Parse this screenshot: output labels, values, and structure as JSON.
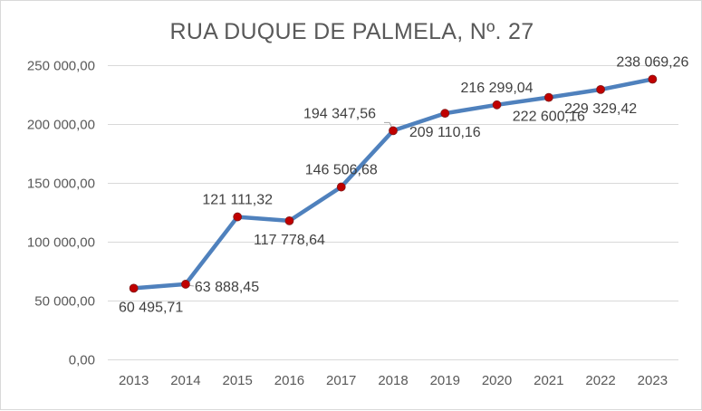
{
  "chart_data": {
    "type": "line",
    "title": "RUA DUQUE DE PALMELA, Nº. 27",
    "xlabel": "",
    "ylabel": "",
    "categories": [
      "2013",
      "2014",
      "2015",
      "2016",
      "2017",
      "2018",
      "2019",
      "2020",
      "2021",
      "2022",
      "2023"
    ],
    "values": [
      60495.71,
      63888.45,
      121111.32,
      117778.64,
      146506.68,
      194347.56,
      209110.16,
      216299.04,
      222600.16,
      229329.42,
      238069.26
    ],
    "value_labels": [
      "60 495,71",
      "63 888,45",
      "121 111,32",
      "117 778,64",
      "146 506,68",
      "194 347,56",
      "209 110,16",
      "216 299,04",
      "222 600,16",
      "229 329,42",
      "238 069,26"
    ],
    "yticks": [
      0,
      50000,
      100000,
      150000,
      200000,
      250000
    ],
    "ytick_labels": [
      "0,00",
      "50 000,00",
      "100 000,00",
      "150 000,00",
      "200 000,00",
      "250 000,00"
    ],
    "ylim": [
      0,
      250000
    ],
    "grid": true,
    "legend": "none",
    "line_color": "#4f81bd",
    "marker_color": "#c00000"
  }
}
